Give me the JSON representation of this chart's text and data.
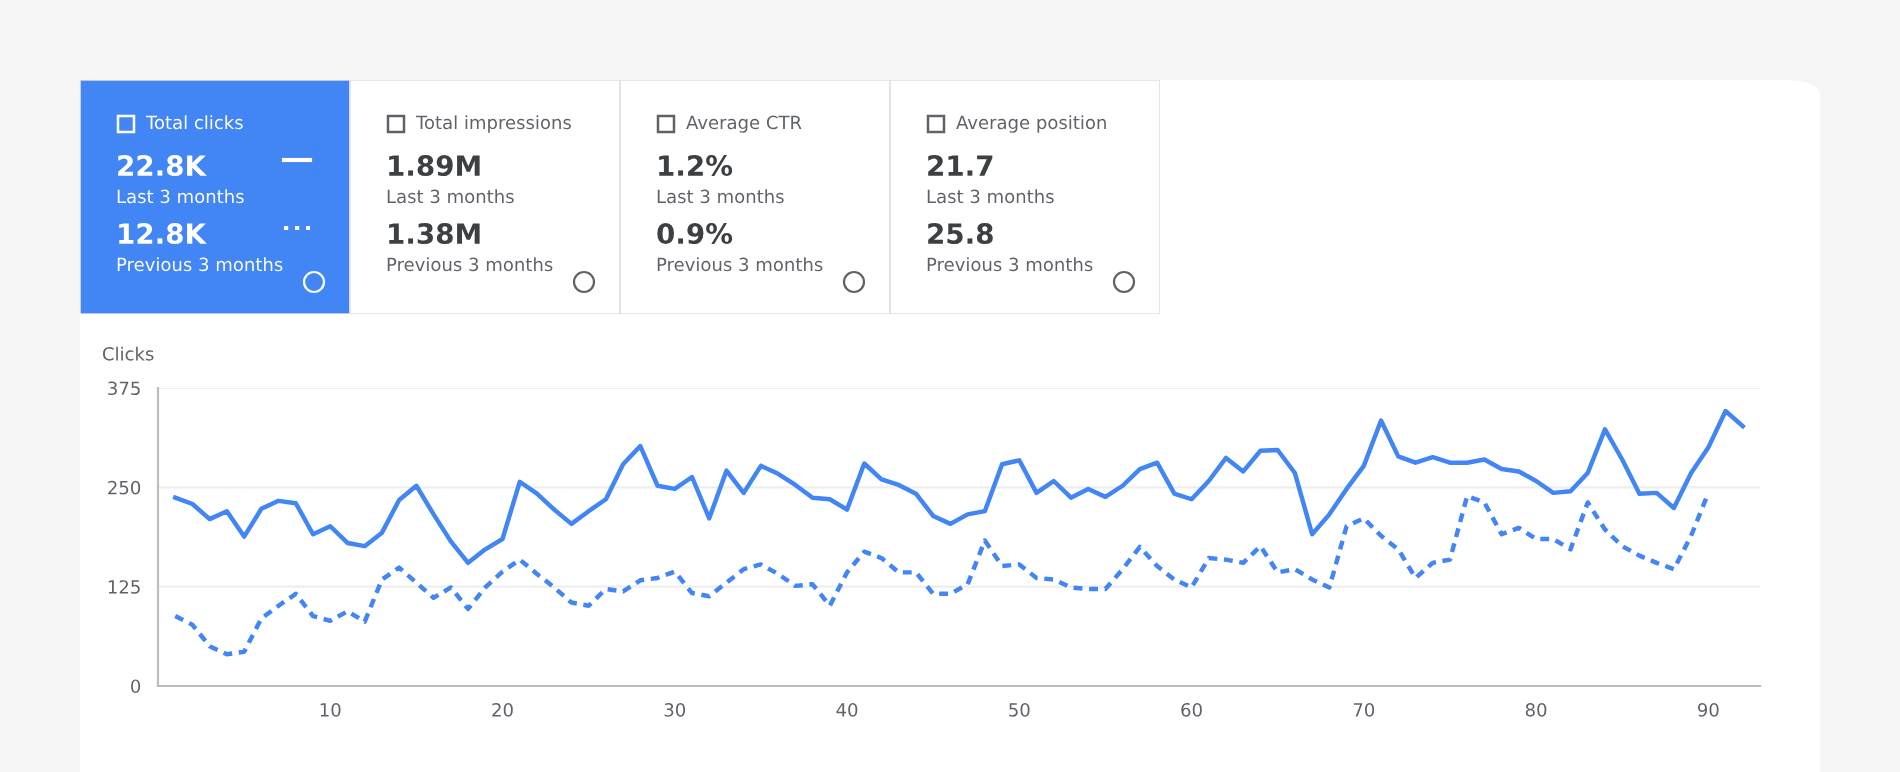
{
  "chart_data": [
    {
      "type": "other",
      "annotations": [
        "Total clicks",
        "22.8K",
        "Last 3 months",
        "12.8K",
        "Previous 3 months",
        "Total impressions",
        "1.89M",
        "Last 3 months",
        "1.38M",
        "Previous 3 months",
        "Average CTR",
        "1.2%",
        "Last 3 months",
        "0.9%",
        "Previous 3 months",
        "Average position",
        "21.7",
        "Last 3 months",
        "25.8",
        "Previous 3 months"
      ],
      "colors": [
        "#4285f4",
        "#ffffff",
        "#ffffff",
        "#ffffff"
      ]
    },
    {
      "type": "line",
      "ylabel": "Clicks",
      "x": [
        1,
        2,
        3,
        4,
        5,
        6,
        7,
        8,
        9,
        10,
        11,
        12,
        13,
        14,
        15,
        16,
        17,
        18,
        19,
        20,
        21,
        22,
        23,
        24,
        25,
        26,
        27,
        28,
        29,
        30,
        31,
        32,
        33,
        34,
        35,
        36,
        37,
        38,
        39,
        40,
        41,
        42,
        43,
        44,
        45,
        46,
        47,
        48,
        49,
        50,
        51,
        52,
        53,
        54,
        55,
        56,
        57,
        58,
        59,
        60,
        61,
        62,
        63,
        64,
        65,
        66,
        67,
        68,
        69,
        70,
        71,
        72,
        73,
        74,
        75,
        76,
        77,
        78,
        79,
        80,
        81,
        82,
        83,
        84,
        85,
        86,
        87,
        88,
        89,
        90,
        91,
        92
      ],
      "series": [
        {
          "color": "#4285f4",
          "line_style": "solid",
          "values": [
            237,
            229,
            210,
            220,
            188,
            223,
            233,
            230,
            191,
            201,
            180,
            176,
            193,
            234,
            252,
            216,
            182,
            155,
            172,
            185,
            257,
            242,
            222,
            204,
            220,
            235,
            279,
            302,
            252,
            248,
            263,
            211,
            271,
            243,
            277,
            267,
            253,
            237,
            235,
            222,
            280,
            260,
            253,
            242,
            214,
            204,
            216,
            220,
            279,
            284,
            243,
            258,
            237,
            248,
            238,
            252,
            273,
            281,
            242,
            235,
            258,
            287,
            270,
            296,
            297,
            268,
            191,
            216,
            248,
            277,
            334,
            289,
            281,
            288,
            281,
            281,
            285,
            273,
            270,
            258,
            243,
            245,
            268,
            323,
            285,
            242,
            243,
            224,
            268,
            300,
            346,
            327
          ]
        },
        {
          "color": "#4285f4",
          "line_style": "dashed",
          "values": [
            88,
            77,
            50,
            40,
            43,
            85,
            101,
            116,
            88,
            82,
            94,
            81,
            134,
            149,
            130,
            111,
            124,
            97,
            124,
            144,
            159,
            141,
            124,
            105,
            101,
            122,
            119,
            133,
            136,
            144,
            117,
            113,
            130,
            147,
            153,
            141,
            126,
            128,
            101,
            143,
            169,
            161,
            143,
            143,
            116,
            116,
            128,
            183,
            151,
            153,
            136,
            134,
            124,
            122,
            122,
            147,
            175,
            151,
            134,
            124,
            161,
            159,
            155,
            176,
            143,
            147,
            134,
            124,
            201,
            211,
            189,
            172,
            136,
            155,
            159,
            239,
            231,
            191,
            199,
            185,
            185,
            172,
            231,
            197,
            176,
            164,
            155,
            147,
            189,
            243,
            null,
            null
          ]
        }
      ],
      "xlim": [
        0,
        93
      ],
      "ylim": [
        0,
        375
      ],
      "xticks": [
        10,
        20,
        30,
        40,
        50,
        60,
        70,
        80,
        90
      ],
      "yticks": [
        0,
        125,
        250,
        375
      ],
      "grid": "y",
      "marker": "none"
    }
  ]
}
